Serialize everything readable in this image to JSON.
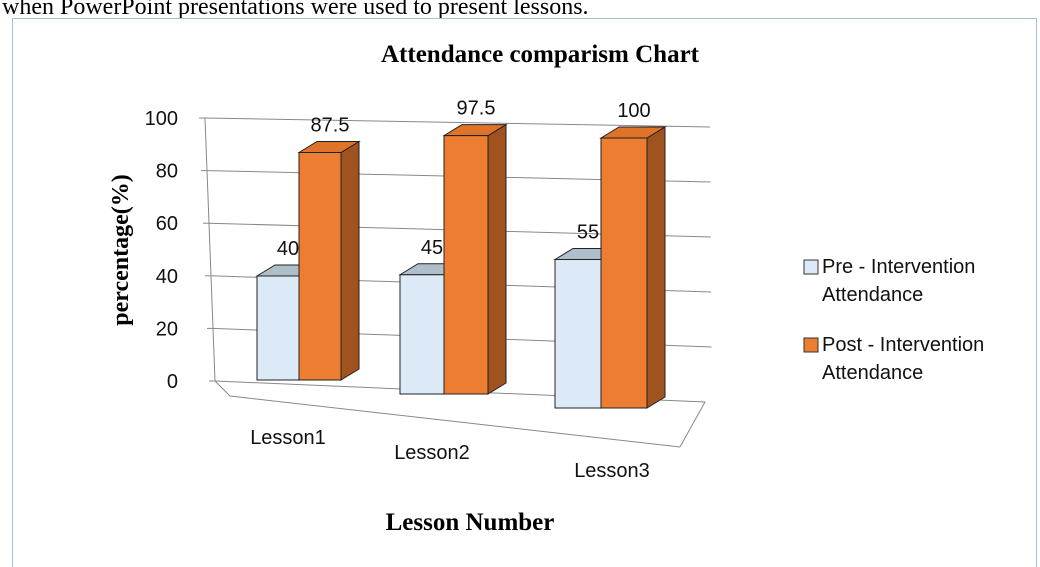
{
  "header_text": "when PowerPoint presentations were used to present lessons.",
  "chart_data": {
    "type": "bar3d",
    "title": "Attendance comparism Chart",
    "x_label": "Lesson Number",
    "y_label": "percentage(%)",
    "categories": [
      "Lesson1",
      "Lesson2",
      "Lesson3"
    ],
    "series": [
      {
        "name": "Pre - Intervention Attendance",
        "color": "#dce9f7",
        "values": [
          40,
          45,
          55
        ]
      },
      {
        "name": "Post - Intervention Attendance",
        "color": "#ed7d31",
        "values": [
          87.5,
          97.5,
          100
        ]
      }
    ],
    "ylim": [
      0,
      100
    ],
    "yticks": [
      0,
      20,
      40,
      60,
      80,
      100
    ],
    "grid": true,
    "legend": "right"
  }
}
